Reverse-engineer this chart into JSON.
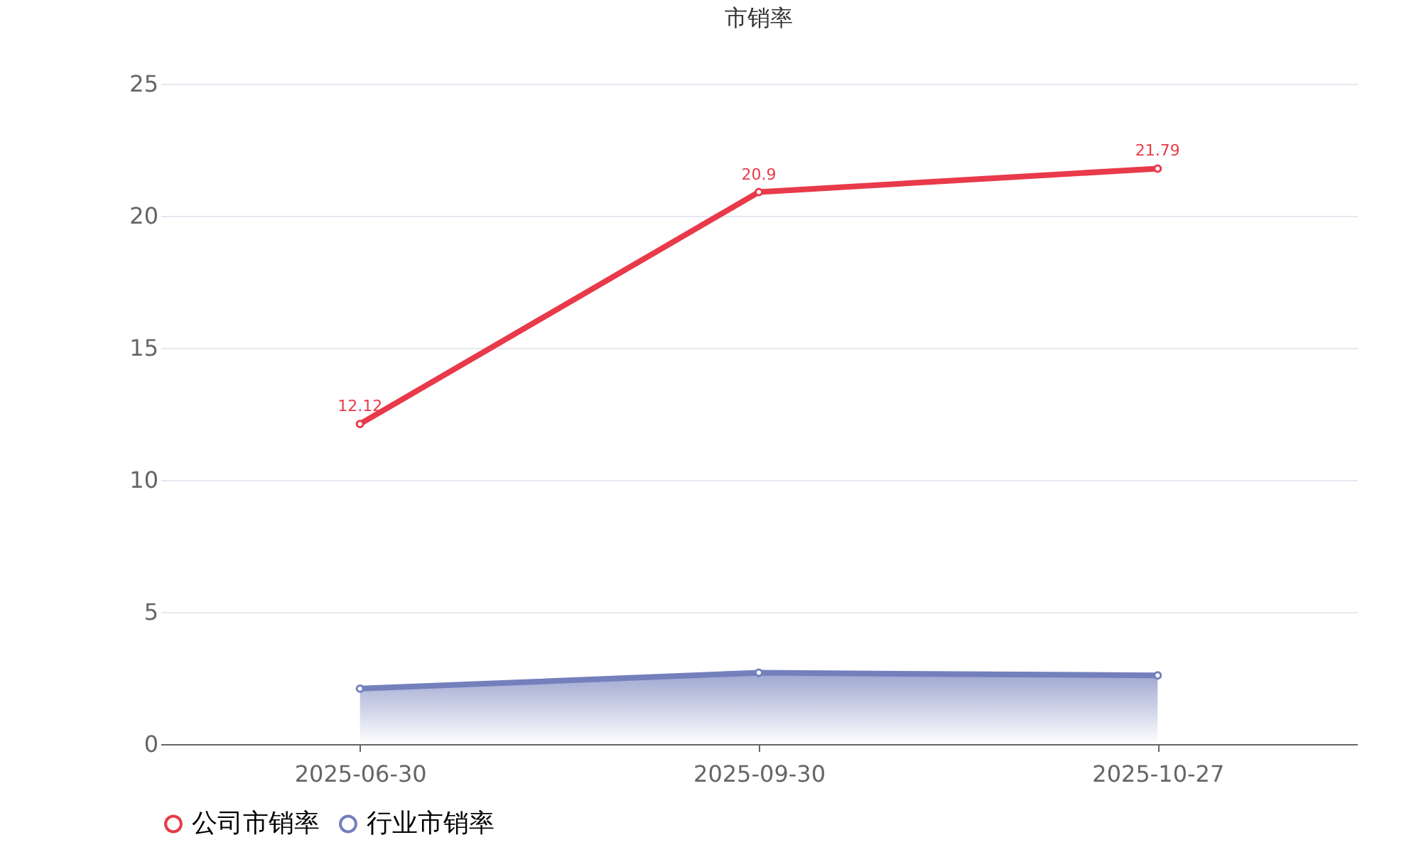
{
  "chart_data": {
    "type": "line",
    "title": "市销率",
    "categories": [
      "2025-06-30",
      "2025-09-30",
      "2025-10-27"
    ],
    "series": [
      {
        "name": "公司市销率",
        "color": "#e83a4a",
        "values": [
          12.12,
          20.9,
          21.79
        ],
        "value_labels": [
          "12.12",
          "20.9",
          "21.79"
        ]
      },
      {
        "name": "行业市销率",
        "color": "#7480bc",
        "type": "area",
        "values": [
          2.1,
          2.7,
          2.6
        ]
      }
    ],
    "ylim": [
      0,
      25
    ],
    "yticks": [
      0,
      5,
      10,
      15,
      20,
      25
    ],
    "grid": "y",
    "legend": "bottom",
    "marker": "circle",
    "line_style": "solid"
  }
}
